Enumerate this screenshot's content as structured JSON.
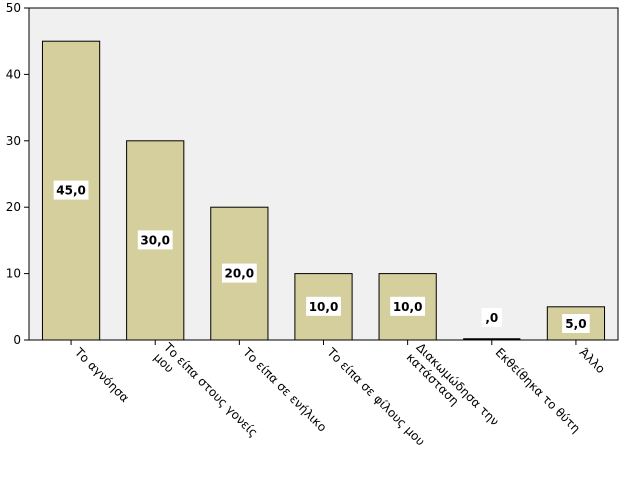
{
  "chart_data": {
    "type": "bar",
    "title": "",
    "xlabel": "",
    "ylabel": "",
    "ylim": [
      0,
      50
    ],
    "yticks": [
      0,
      10,
      20,
      30,
      40,
      50
    ],
    "grid": false,
    "categories": [
      [
        "Το αγνόησα"
      ],
      [
        "Το είπα στους γονείς",
        "μου"
      ],
      [
        "Το είπα σε ενήλικο"
      ],
      [
        "Το είπα σε φίλους μου"
      ],
      [
        "Διακωμώδησα την",
        "κατάσταση"
      ],
      [
        "Εκθείθηκα το θύτη"
      ],
      [
        "Άλλο"
      ]
    ],
    "values": [
      45,
      30,
      20,
      10,
      10,
      0,
      5
    ],
    "data_labels": [
      "45,0",
      "30,0",
      "20,0",
      "10,0",
      "10,0",
      ",0",
      "5,0"
    ],
    "colors": {
      "bar_fill": "#d4cf9c",
      "bar_stroke": "#000000",
      "plot_bg": "#f0f0f0",
      "label_bg": "#ffffff"
    }
  }
}
